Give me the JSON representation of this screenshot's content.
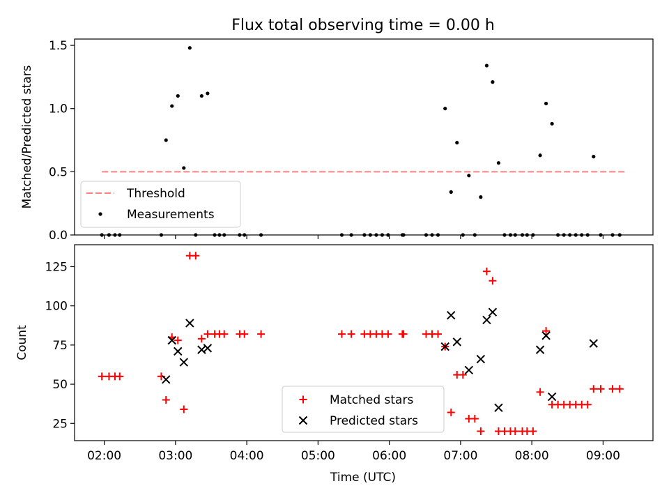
{
  "figure": {
    "title": "Flux total observing time = 0.00 h"
  },
  "chart_data": [
    {
      "type": "scatter",
      "panel": "top",
      "title": "Flux total observing time = 0.00 h",
      "xlabel": "",
      "ylabel": "Matched/Predicted stars",
      "xlim": [
        "01:35",
        "09:42"
      ],
      "ylim": [
        0,
        1.55
      ],
      "yticks": [
        0.0,
        0.5,
        1.0,
        1.5
      ],
      "ytick_labels": [
        "0.0",
        "0.5",
        "1.0",
        "1.5"
      ],
      "xticks": [
        "02:00",
        "03:00",
        "04:00",
        "05:00",
        "06:00",
        "07:00",
        "08:00",
        "09:00"
      ],
      "grid": false,
      "legend": {
        "position": "lower-left",
        "entries": [
          "Threshold",
          "Measurements"
        ]
      },
      "threshold": {
        "name": "Threshold",
        "value": 0.5,
        "x_start": "01:58",
        "x_end": "09:20",
        "color": "#ff8080",
        "style": "dashed"
      },
      "series": [
        {
          "name": "Measurements",
          "color": "#000000",
          "marker": "dot",
          "points": [
            {
              "x": "01:58",
              "y": 0.0
            },
            {
              "x": "02:04",
              "y": 0.0
            },
            {
              "x": "02:09",
              "y": 0.0
            },
            {
              "x": "02:13",
              "y": 0.0
            },
            {
              "x": "02:48",
              "y": 0.0
            },
            {
              "x": "02:52",
              "y": 0.75
            },
            {
              "x": "02:57",
              "y": 1.02
            },
            {
              "x": "03:02",
              "y": 1.1
            },
            {
              "x": "03:07",
              "y": 0.53
            },
            {
              "x": "03:12",
              "y": 1.48
            },
            {
              "x": "03:17",
              "y": 0.0
            },
            {
              "x": "03:22",
              "y": 1.1
            },
            {
              "x": "03:27",
              "y": 1.12
            },
            {
              "x": "03:33",
              "y": 0.0
            },
            {
              "x": "03:37",
              "y": 0.0
            },
            {
              "x": "03:41",
              "y": 0.0
            },
            {
              "x": "03:54",
              "y": 0.0
            },
            {
              "x": "03:58",
              "y": 0.0
            },
            {
              "x": "04:12",
              "y": 0.0
            },
            {
              "x": "05:20",
              "y": 0.0
            },
            {
              "x": "05:28",
              "y": 0.0
            },
            {
              "x": "05:39",
              "y": 0.0
            },
            {
              "x": "05:44",
              "y": 0.0
            },
            {
              "x": "05:49",
              "y": 0.0
            },
            {
              "x": "05:54",
              "y": 0.0
            },
            {
              "x": "05:59",
              "y": 0.0
            },
            {
              "x": "06:11",
              "y": 0.0
            },
            {
              "x": "06:12",
              "y": 0.0
            },
            {
              "x": "06:31",
              "y": 0.0
            },
            {
              "x": "06:36",
              "y": 0.0
            },
            {
              "x": "06:41",
              "y": 0.0
            },
            {
              "x": "06:47",
              "y": 1.0
            },
            {
              "x": "06:52",
              "y": 0.34
            },
            {
              "x": "06:57",
              "y": 0.73
            },
            {
              "x": "07:02",
              "y": 0.0
            },
            {
              "x": "07:07",
              "y": 0.47
            },
            {
              "x": "07:12",
              "y": 0.0
            },
            {
              "x": "07:17",
              "y": 0.3
            },
            {
              "x": "07:22",
              "y": 1.34
            },
            {
              "x": "07:27",
              "y": 1.21
            },
            {
              "x": "07:32",
              "y": 0.57
            },
            {
              "x": "07:37",
              "y": 0.0
            },
            {
              "x": "07:42",
              "y": 0.0
            },
            {
              "x": "07:46",
              "y": 0.0
            },
            {
              "x": "07:52",
              "y": 0.0
            },
            {
              "x": "07:56",
              "y": 0.0
            },
            {
              "x": "08:01",
              "y": 0.0
            },
            {
              "x": "08:07",
              "y": 0.63
            },
            {
              "x": "08:12",
              "y": 1.04
            },
            {
              "x": "08:17",
              "y": 0.88
            },
            {
              "x": "08:22",
              "y": 0.0
            },
            {
              "x": "08:27",
              "y": 0.0
            },
            {
              "x": "08:32",
              "y": 0.0
            },
            {
              "x": "08:37",
              "y": 0.0
            },
            {
              "x": "08:42",
              "y": 0.0
            },
            {
              "x": "08:47",
              "y": 0.0
            },
            {
              "x": "08:52",
              "y": 0.62
            },
            {
              "x": "08:58",
              "y": 0.0
            },
            {
              "x": "09:08",
              "y": 0.0
            },
            {
              "x": "09:14",
              "y": 0.0
            }
          ]
        }
      ]
    },
    {
      "type": "scatter",
      "panel": "bottom",
      "xlabel": "Time (UTC)",
      "ylabel": "Count",
      "xlim": [
        "01:35",
        "09:42"
      ],
      "ylim": [
        14,
        139
      ],
      "yticks": [
        25,
        50,
        75,
        100,
        125
      ],
      "ytick_labels": [
        "25",
        "50",
        "75",
        "100",
        "125"
      ],
      "xticks": [
        "02:00",
        "03:00",
        "04:00",
        "05:00",
        "06:00",
        "07:00",
        "08:00",
        "09:00"
      ],
      "xtick_labels": [
        "02:00",
        "03:00",
        "04:00",
        "05:00",
        "06:00",
        "07:00",
        "08:00",
        "09:00"
      ],
      "grid": false,
      "legend": {
        "position": "lower-center",
        "entries": [
          "Matched stars",
          "Predicted stars"
        ]
      },
      "series": [
        {
          "name": "Matched stars",
          "color": "#ff0000",
          "marker": "plus",
          "points": [
            {
              "x": "01:58",
              "y": 55
            },
            {
              "x": "02:04",
              "y": 55
            },
            {
              "x": "02:09",
              "y": 55
            },
            {
              "x": "02:13",
              "y": 55
            },
            {
              "x": "02:48",
              "y": 55
            },
            {
              "x": "02:52",
              "y": 40
            },
            {
              "x": "02:57",
              "y": 80
            },
            {
              "x": "03:02",
              "y": 78
            },
            {
              "x": "03:07",
              "y": 34
            },
            {
              "x": "03:12",
              "y": 132
            },
            {
              "x": "03:17",
              "y": 132
            },
            {
              "x": "03:22",
              "y": 79
            },
            {
              "x": "03:27",
              "y": 82
            },
            {
              "x": "03:33",
              "y": 82
            },
            {
              "x": "03:37",
              "y": 82
            },
            {
              "x": "03:41",
              "y": 82
            },
            {
              "x": "03:54",
              "y": 82
            },
            {
              "x": "03:58",
              "y": 82
            },
            {
              "x": "04:12",
              "y": 82
            },
            {
              "x": "05:20",
              "y": 82
            },
            {
              "x": "05:28",
              "y": 82
            },
            {
              "x": "05:39",
              "y": 82
            },
            {
              "x": "05:44",
              "y": 82
            },
            {
              "x": "05:49",
              "y": 82
            },
            {
              "x": "05:54",
              "y": 82
            },
            {
              "x": "05:59",
              "y": 82
            },
            {
              "x": "06:11",
              "y": 82
            },
            {
              "x": "06:12",
              "y": 82
            },
            {
              "x": "06:31",
              "y": 82
            },
            {
              "x": "06:36",
              "y": 82
            },
            {
              "x": "06:41",
              "y": 82
            },
            {
              "x": "06:47",
              "y": 74
            },
            {
              "x": "06:52",
              "y": 32
            },
            {
              "x": "06:57",
              "y": 56
            },
            {
              "x": "07:02",
              "y": 56
            },
            {
              "x": "07:07",
              "y": 28
            },
            {
              "x": "07:12",
              "y": 28
            },
            {
              "x": "07:17",
              "y": 20
            },
            {
              "x": "07:22",
              "y": 122
            },
            {
              "x": "07:27",
              "y": 116
            },
            {
              "x": "07:32",
              "y": 20
            },
            {
              "x": "07:37",
              "y": 20
            },
            {
              "x": "07:42",
              "y": 20
            },
            {
              "x": "07:46",
              "y": 20
            },
            {
              "x": "07:52",
              "y": 20
            },
            {
              "x": "07:56",
              "y": 20
            },
            {
              "x": "08:01",
              "y": 20
            },
            {
              "x": "08:07",
              "y": 45
            },
            {
              "x": "08:12",
              "y": 84
            },
            {
              "x": "08:17",
              "y": 37
            },
            {
              "x": "08:22",
              "y": 37
            },
            {
              "x": "08:27",
              "y": 37
            },
            {
              "x": "08:32",
              "y": 37
            },
            {
              "x": "08:37",
              "y": 37
            },
            {
              "x": "08:42",
              "y": 37
            },
            {
              "x": "08:47",
              "y": 37
            },
            {
              "x": "08:52",
              "y": 47
            },
            {
              "x": "08:58",
              "y": 47
            },
            {
              "x": "09:08",
              "y": 47
            },
            {
              "x": "09:14",
              "y": 47
            }
          ]
        },
        {
          "name": "Predicted stars",
          "color": "#000000",
          "marker": "cross",
          "points": [
            {
              "x": "02:52",
              "y": 53
            },
            {
              "x": "02:57",
              "y": 78
            },
            {
              "x": "03:02",
              "y": 71
            },
            {
              "x": "03:07",
              "y": 64
            },
            {
              "x": "03:12",
              "y": 89
            },
            {
              "x": "03:22",
              "y": 72
            },
            {
              "x": "03:27",
              "y": 73
            },
            {
              "x": "06:47",
              "y": 74
            },
            {
              "x": "06:52",
              "y": 94
            },
            {
              "x": "06:57",
              "y": 77
            },
            {
              "x": "07:07",
              "y": 59
            },
            {
              "x": "07:17",
              "y": 66
            },
            {
              "x": "07:22",
              "y": 91
            },
            {
              "x": "07:27",
              "y": 96
            },
            {
              "x": "07:32",
              "y": 35
            },
            {
              "x": "08:07",
              "y": 72
            },
            {
              "x": "08:12",
              "y": 81
            },
            {
              "x": "08:17",
              "y": 42
            },
            {
              "x": "08:52",
              "y": 76
            }
          ]
        }
      ]
    }
  ]
}
